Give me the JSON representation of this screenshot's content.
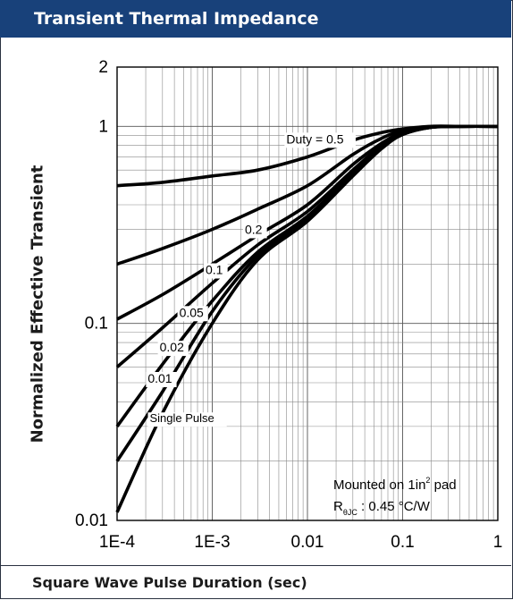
{
  "header": {
    "title": "Transient Thermal Impedance"
  },
  "footer": {
    "xlabel": "Square Wave Pulse Duration (sec)"
  },
  "annotation": {
    "mounted": "Mounted on 1in",
    "mounted_sup": "2",
    "mounted_tail": " pad",
    "r_main": "R",
    "r_sub": "θJC",
    "r_value": " : 0.45 °C/W"
  },
  "chart_data": {
    "type": "line",
    "title": "Transient Thermal Impedance",
    "xlabel": "Square Wave Pulse Duration (sec)",
    "ylabel": "Normalized Effective Transient",
    "x_scale": "log",
    "y_scale": "log",
    "xlim": [
      0.0001,
      1
    ],
    "ylim": [
      0.01,
      2
    ],
    "grid": true,
    "x_ticks": [
      "1E-4",
      "1E-3",
      "0.01",
      "0.1",
      "1"
    ],
    "y_ticks": [
      "0.01",
      "0.1",
      "1",
      "2"
    ],
    "series": [
      {
        "name": "Duty = 0.5",
        "x": [
          0.0001,
          0.0003,
          0.001,
          0.003,
          0.01,
          0.03,
          0.06,
          0.1,
          0.2,
          0.4,
          1
        ],
        "y": [
          0.5,
          0.52,
          0.56,
          0.6,
          0.7,
          0.85,
          0.93,
          0.97,
          1.0,
          1.0,
          1.0
        ]
      },
      {
        "name": "0.2",
        "x": [
          0.0001,
          0.0003,
          0.001,
          0.003,
          0.01,
          0.03,
          0.06,
          0.1,
          0.2,
          0.4,
          1
        ],
        "y": [
          0.2,
          0.24,
          0.3,
          0.38,
          0.5,
          0.72,
          0.87,
          0.95,
          0.99,
          1.0,
          1.0
        ]
      },
      {
        "name": "0.1",
        "x": [
          0.0001,
          0.0003,
          0.001,
          0.003,
          0.01,
          0.03,
          0.06,
          0.1,
          0.2,
          0.4,
          1
        ],
        "y": [
          0.105,
          0.14,
          0.2,
          0.28,
          0.4,
          0.64,
          0.82,
          0.93,
          0.99,
          1.0,
          1.0
        ]
      },
      {
        "name": "0.05",
        "x": [
          0.0001,
          0.0003,
          0.001,
          0.003,
          0.01,
          0.03,
          0.06,
          0.1,
          0.2,
          0.4,
          1
        ],
        "y": [
          0.06,
          0.095,
          0.16,
          0.25,
          0.37,
          0.6,
          0.8,
          0.92,
          0.99,
          1.0,
          1.0
        ]
      },
      {
        "name": "0.02",
        "x": [
          0.0001,
          0.0003,
          0.001,
          0.003,
          0.01,
          0.03,
          0.06,
          0.1,
          0.2,
          0.4,
          1
        ],
        "y": [
          0.03,
          0.062,
          0.13,
          0.23,
          0.35,
          0.58,
          0.79,
          0.92,
          0.99,
          1.0,
          1.0
        ]
      },
      {
        "name": "0.01",
        "x": [
          0.0001,
          0.0003,
          0.001,
          0.003,
          0.01,
          0.03,
          0.06,
          0.1,
          0.2,
          0.4,
          1
        ],
        "y": [
          0.02,
          0.045,
          0.115,
          0.22,
          0.34,
          0.57,
          0.78,
          0.91,
          0.99,
          1.0,
          1.0
        ]
      },
      {
        "name": "Single Pulse",
        "x": [
          0.0001,
          0.0003,
          0.001,
          0.003,
          0.01,
          0.03,
          0.06,
          0.1,
          0.2,
          0.4,
          1
        ],
        "y": [
          0.011,
          0.035,
          0.1,
          0.21,
          0.33,
          0.56,
          0.77,
          0.91,
          0.99,
          1.0,
          1.0
        ]
      }
    ]
  },
  "colors": {
    "header_bg": "#18417a",
    "line": "#000000",
    "grid": "#8a8a8a"
  }
}
